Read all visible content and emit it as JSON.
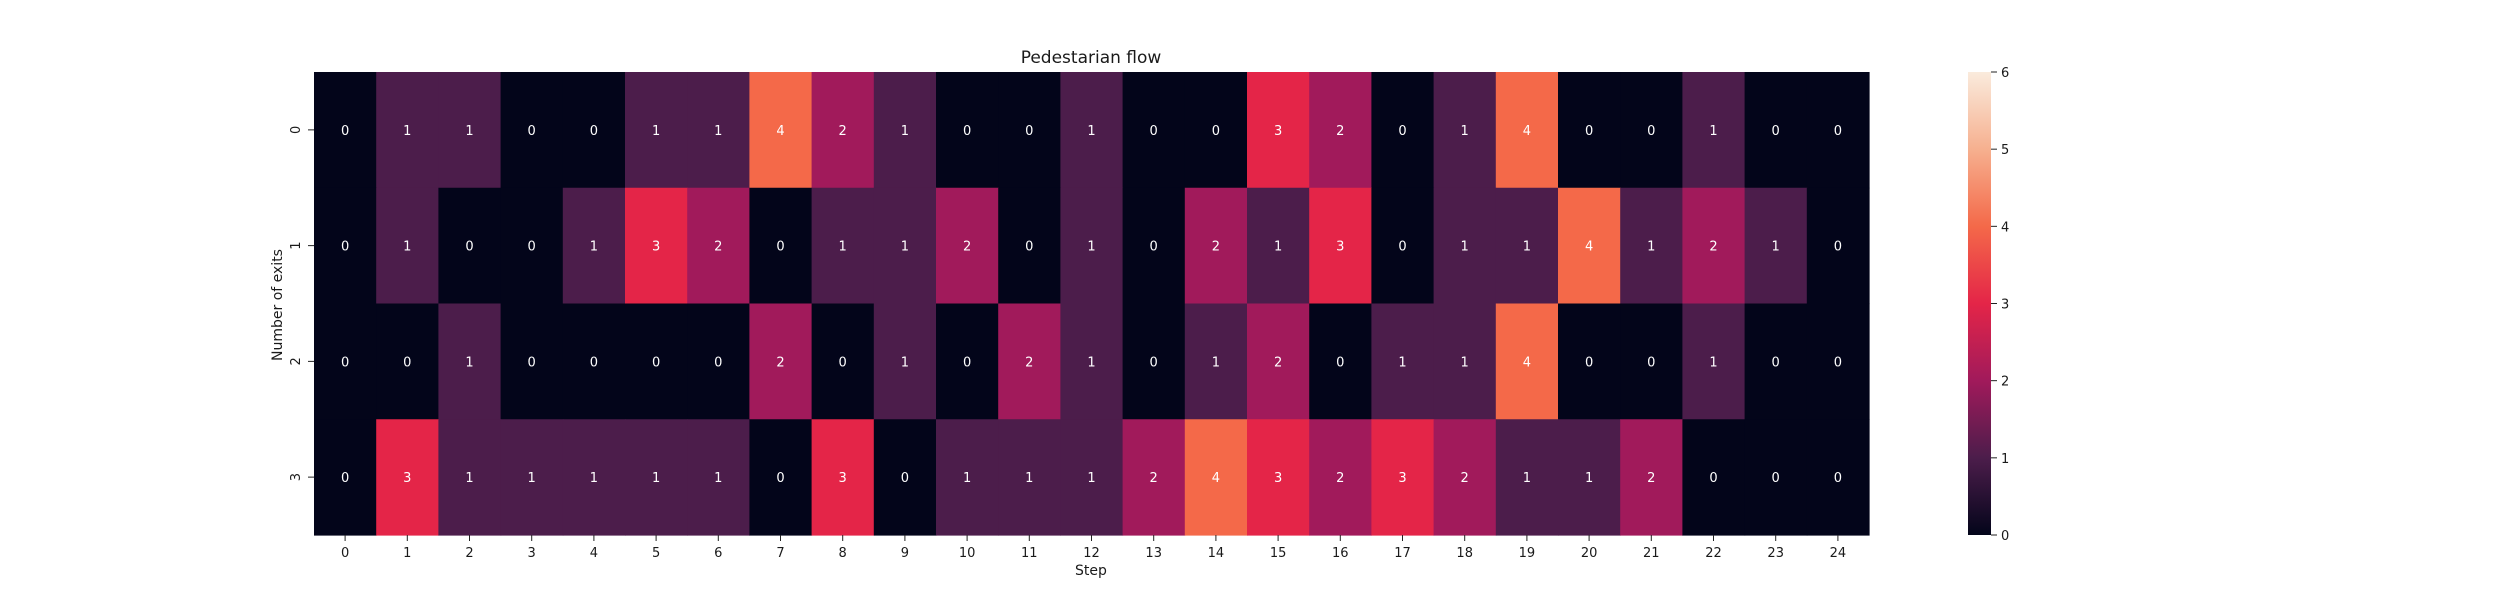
{
  "chart_data": {
    "type": "heatmap",
    "title": "Pedestarian flow",
    "xlabel": "Step",
    "ylabel": "Number of exits",
    "x_categories": [
      "0",
      "1",
      "2",
      "3",
      "4",
      "5",
      "6",
      "7",
      "8",
      "9",
      "10",
      "11",
      "12",
      "13",
      "14",
      "15",
      "16",
      "17",
      "18",
      "19",
      "20",
      "21",
      "22",
      "23",
      "24"
    ],
    "y_categories": [
      "0",
      "1",
      "2",
      "3"
    ],
    "values": [
      [
        0,
        1,
        1,
        0,
        0,
        1,
        1,
        4,
        2,
        1,
        0,
        0,
        1,
        0,
        0,
        3,
        2,
        0,
        1,
        4,
        0,
        0,
        1,
        0,
        0
      ],
      [
        0,
        1,
        0,
        0,
        1,
        3,
        2,
        0,
        1,
        1,
        2,
        0,
        1,
        0,
        2,
        1,
        3,
        0,
        1,
        1,
        4,
        1,
        2,
        1,
        0
      ],
      [
        0,
        0,
        1,
        0,
        0,
        0,
        0,
        2,
        0,
        1,
        0,
        2,
        1,
        0,
        1,
        2,
        0,
        1,
        1,
        4,
        0,
        0,
        1,
        0,
        0
      ],
      [
        0,
        3,
        1,
        1,
        1,
        1,
        1,
        0,
        3,
        0,
        1,
        1,
        1,
        2,
        4,
        3,
        2,
        3,
        2,
        1,
        1,
        2,
        0,
        0,
        0
      ]
    ],
    "colorbar": {
      "range": [
        0,
        6
      ],
      "ticks": [
        "0",
        "1",
        "2",
        "3",
        "4",
        "5",
        "6"
      ],
      "colormap": "rocket"
    },
    "annotations": true,
    "grid": false
  }
}
